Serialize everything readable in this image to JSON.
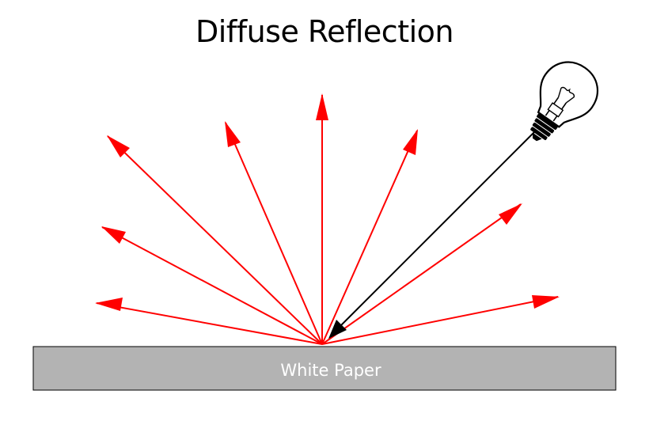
{
  "title": "Diffuse Reflection",
  "surface": {
    "label": "White Paper",
    "fill_color": "#b3b3b3",
    "border_color": "#000000"
  },
  "colors": {
    "reflected_ray": "#ff0000",
    "incident_ray": "#000000",
    "background": "#ffffff"
  },
  "light_source": {
    "icon": "light-bulb-icon"
  }
}
